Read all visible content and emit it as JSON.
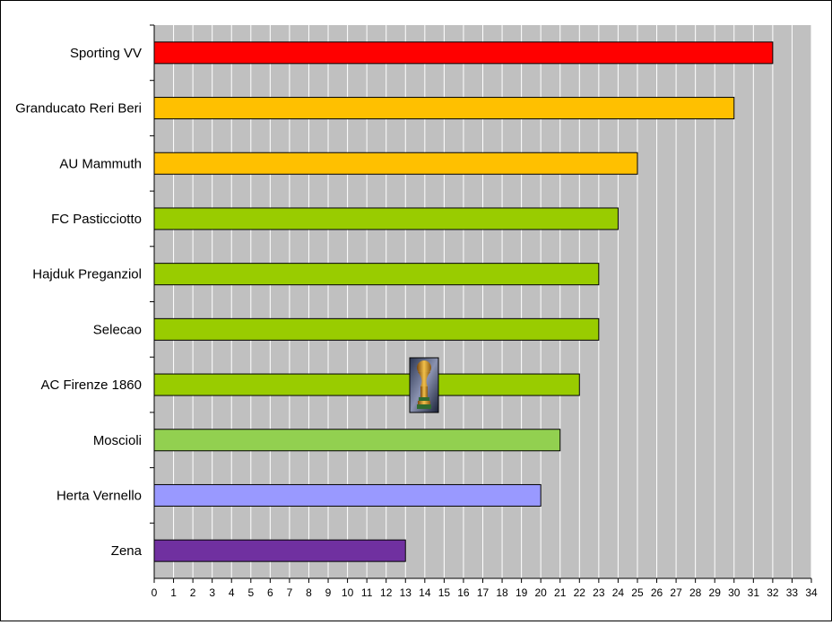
{
  "chart_data": {
    "type": "bar",
    "orientation": "horizontal",
    "title": "",
    "xlabel": "",
    "ylabel": "",
    "categories": [
      "Sporting VV",
      "Granducato Reri Beri",
      "AU Mammuth",
      "FC Pasticciotto",
      "Hajduk Preganziol",
      "Selecao",
      "AC Firenze 1860",
      "Moscioli",
      "Herta Vernello",
      "Zena"
    ],
    "values": [
      32,
      30,
      25,
      24,
      23,
      23,
      22,
      21,
      20,
      13
    ],
    "bar_colors": [
      "#ff0000",
      "#ffc000",
      "#ffc000",
      "#99cc00",
      "#99cc00",
      "#99cc00",
      "#99cc00",
      "#92d050",
      "#9999ff",
      "#7030a0"
    ],
    "xlim": [
      0,
      34
    ],
    "x_ticks": [
      "0",
      "1",
      "2",
      "3",
      "4",
      "5",
      "6",
      "7",
      "8",
      "9",
      "10",
      "11",
      "12",
      "13",
      "14",
      "15",
      "16",
      "17",
      "18",
      "19",
      "20",
      "21",
      "22",
      "23",
      "24",
      "25",
      "26",
      "27",
      "28",
      "29",
      "30",
      "31",
      "32",
      "33",
      "34"
    ],
    "grid": "vertical",
    "plot_background": "#c0c0c0",
    "gridline_color": "#ffffff",
    "legend": "none",
    "decoration": "trophy-icon"
  }
}
